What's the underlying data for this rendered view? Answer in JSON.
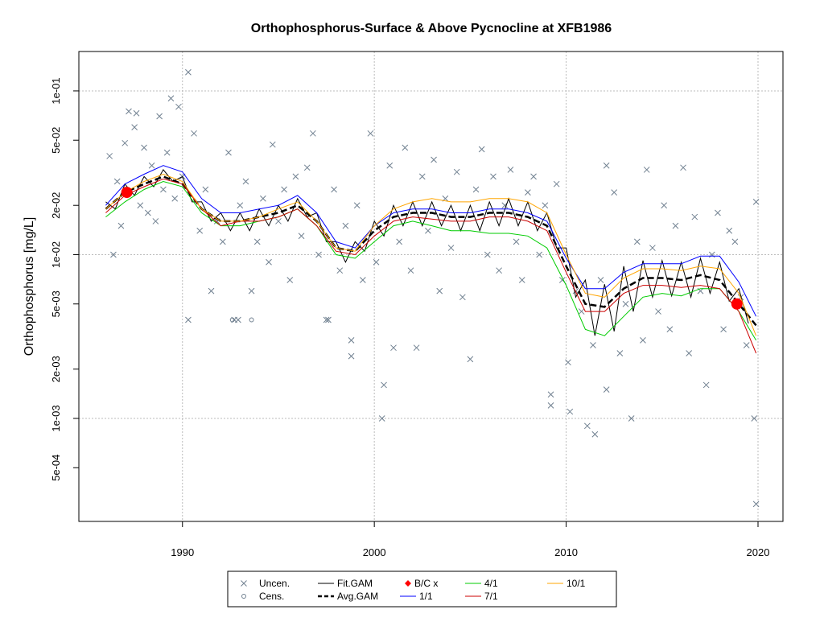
{
  "chart_data": {
    "type": "line",
    "title": "Orthophosphorus-Surface & Above Pycnocline at XFB1986",
    "y_label": "Orthophosphorus [mg/L]",
    "log_y": true,
    "grid": true,
    "xlim": [
      1984.6,
      2021.3
    ],
    "ylim": [
      0.000235,
      0.174
    ],
    "xticks": [
      1990,
      2000,
      2010,
      2020
    ],
    "yticks": [
      {
        "value": 0.1,
        "label": "1e-01"
      },
      {
        "value": 0.05,
        "label": "5e-02"
      },
      {
        "value": 0.02,
        "label": "2e-02"
      },
      {
        "value": 0.01,
        "label": "1e-02"
      },
      {
        "value": 0.005,
        "label": "5e-03"
      },
      {
        "value": 0.002,
        "label": "2e-03"
      },
      {
        "value": 0.001,
        "label": "1e-03"
      },
      {
        "value": 0.0005,
        "label": "5e-04"
      }
    ],
    "ygrid": [
      0.1,
      0.01,
      0.001
    ],
    "x": [
      1986,
      1987,
      1988,
      1989,
      1990,
      1991,
      1992,
      1993,
      1994,
      1995,
      1996,
      1997,
      1998,
      1999,
      2000,
      2001,
      2002,
      2003,
      2004,
      2005,
      2006,
      2007,
      2008,
      2009,
      2010,
      2011,
      2012,
      2013,
      2014,
      2015,
      2016,
      2017,
      2018,
      2019,
      2019.9
    ],
    "series": [
      {
        "name": "Uncen.",
        "color": "#708090",
        "style": "cross",
        "x": [
          1986.2,
          1986.4,
          1986.6,
          1986.8,
          1987.0,
          1987.2,
          1987.5,
          1987.6,
          1987.8,
          1988.0,
          1988.2,
          1988.4,
          1988.6,
          1988.8,
          1989.0,
          1989.2,
          1989.4,
          1989.6,
          1989.8,
          1990.0,
          1990.3,
          1990.3,
          1990.6,
          1990.9,
          1991.2,
          1991.5,
          1991.8,
          1992.1,
          1992.4,
          1992.7,
          1992.9,
          1993.0,
          1993.3,
          1993.6,
          1993.9,
          1994.2,
          1994.5,
          1994.7,
          1995.0,
          1995.3,
          1995.6,
          1995.9,
          1996.2,
          1996.5,
          1996.8,
          1997.1,
          1997.5,
          1997.6,
          1997.9,
          1998.2,
          1998.5,
          1998.8,
          1998.8,
          1999.1,
          1999.4,
          1999.8,
          2000.1,
          2000.4,
          2000.5,
          2000.8,
          2001.0,
          2001.3,
          2001.6,
          2001.9,
          2002.2,
          2002.5,
          2002.8,
          2003.1,
          2003.4,
          2003.7,
          2004.0,
          2004.3,
          2004.6,
          2005.0,
          2005.3,
          2005.6,
          2005.9,
          2006.2,
          2006.5,
          2006.8,
          2007.1,
          2007.4,
          2007.7,
          2008.0,
          2008.3,
          2008.6,
          2008.9,
          2009.2,
          2009.2,
          2009.5,
          2009.8,
          2010.1,
          2010.2,
          2010.5,
          2010.8,
          2011.1,
          2011.4,
          2011.5,
          2011.8,
          2012.1,
          2012.1,
          2012.5,
          2012.8,
          2013.1,
          2013.4,
          2013.7,
          2014.0,
          2014.2,
          2014.5,
          2014.8,
          2015.1,
          2015.4,
          2015.7,
          2016.1,
          2016.4,
          2016.7,
          2017.0,
          2017.3,
          2017.6,
          2017.9,
          2018.2,
          2018.5,
          2018.8,
          2019.1,
          2019.4,
          2019.8,
          2019.9,
          2019.9
        ],
        "values": [
          0.04,
          0.01,
          0.028,
          0.015,
          0.048,
          0.075,
          0.06,
          0.073,
          0.02,
          0.045,
          0.018,
          0.035,
          0.016,
          0.07,
          0.025,
          0.042,
          0.09,
          0.022,
          0.08,
          0.03,
          0.13,
          0.004,
          0.055,
          0.014,
          0.025,
          0.006,
          0.016,
          0.012,
          0.042,
          0.004,
          0.004,
          0.02,
          0.028,
          0.006,
          0.012,
          0.022,
          0.009,
          0.047,
          0.016,
          0.025,
          0.007,
          0.03,
          0.013,
          0.034,
          0.055,
          0.01,
          0.004,
          0.004,
          0.025,
          0.008,
          0.015,
          0.0024,
          0.003,
          0.02,
          0.007,
          0.055,
          0.009,
          0.001,
          0.0016,
          0.035,
          0.0027,
          0.012,
          0.045,
          0.008,
          0.0027,
          0.03,
          0.014,
          0.038,
          0.006,
          0.022,
          0.011,
          0.032,
          0.0055,
          0.0023,
          0.025,
          0.044,
          0.01,
          0.03,
          0.008,
          0.02,
          0.033,
          0.012,
          0.007,
          0.024,
          0.03,
          0.01,
          0.02,
          0.0014,
          0.0012,
          0.027,
          0.007,
          0.0022,
          0.0011,
          0.006,
          0.0045,
          0.0009,
          0.0028,
          0.0008,
          0.007,
          0.035,
          0.0015,
          0.024,
          0.0025,
          0.005,
          0.001,
          0.012,
          0.003,
          0.033,
          0.011,
          0.0045,
          0.02,
          0.0035,
          0.015,
          0.034,
          0.0025,
          0.017,
          0.006,
          0.0016,
          0.01,
          0.018,
          0.0035,
          0.014,
          0.012,
          0.0055,
          0.0028,
          0.001,
          0.0003,
          0.021
        ]
      },
      {
        "name": "Cens.",
        "color": "#708090",
        "style": "circle",
        "x": [
          1992.6,
          1993.6
        ],
        "values": [
          0.004,
          0.004
        ]
      },
      {
        "name": "Fit.GAM",
        "color": "#000000",
        "style": "line",
        "x": [
          1986,
          1986.5,
          1987,
          1987.5,
          1988,
          1988.5,
          1989,
          1989.5,
          1990,
          1990.5,
          1991,
          1991.5,
          1992,
          1992.5,
          1993,
          1993.5,
          1994,
          1994.5,
          1995,
          1995.5,
          1996,
          1996.5,
          1997,
          1997.5,
          1998,
          1998.5,
          1999,
          1999.5,
          2000,
          2000.5,
          2001,
          2001.5,
          2002,
          2002.5,
          2003,
          2003.5,
          2004,
          2004.5,
          2005,
          2005.5,
          2006,
          2006.5,
          2007,
          2007.5,
          2008,
          2008.5,
          2009,
          2009.5,
          2010,
          2010.5,
          2011,
          2011.5,
          2012,
          2012.5,
          2013,
          2013.5,
          2014,
          2014.5,
          2015,
          2015.5,
          2016,
          2016.5,
          2017,
          2017.5,
          2018,
          2018.5,
          2019,
          2019.5
        ],
        "values": [
          0.021,
          0.019,
          0.027,
          0.023,
          0.03,
          0.026,
          0.033,
          0.028,
          0.03,
          0.021,
          0.021,
          0.016,
          0.018,
          0.014,
          0.018,
          0.014,
          0.019,
          0.015,
          0.02,
          0.016,
          0.022,
          0.017,
          0.018,
          0.012,
          0.012,
          0.009,
          0.012,
          0.0105,
          0.016,
          0.013,
          0.02,
          0.015,
          0.021,
          0.015,
          0.021,
          0.015,
          0.02,
          0.014,
          0.02,
          0.014,
          0.021,
          0.015,
          0.022,
          0.015,
          0.021,
          0.014,
          0.018,
          0.011,
          0.011,
          0.0055,
          0.007,
          0.0032,
          0.0066,
          0.0034,
          0.0085,
          0.0045,
          0.0092,
          0.0055,
          0.0092,
          0.0056,
          0.009,
          0.0055,
          0.0095,
          0.0058,
          0.009,
          0.0052,
          0.0062,
          0.0038
        ]
      },
      {
        "name": "Avg.GAM",
        "color": "#000000",
        "style": "dashed",
        "values": [
          0.019,
          0.024,
          0.027,
          0.03,
          0.027,
          0.019,
          0.016,
          0.016,
          0.017,
          0.018,
          0.02,
          0.016,
          0.011,
          0.0105,
          0.014,
          0.017,
          0.018,
          0.018,
          0.017,
          0.017,
          0.018,
          0.018,
          0.017,
          0.015,
          0.0085,
          0.005,
          0.0048,
          0.0062,
          0.0072,
          0.0072,
          0.007,
          0.0075,
          0.007,
          0.005,
          0.0037
        ]
      },
      {
        "name": "B/C x",
        "color": "#ff0000",
        "style": "dot",
        "x": [
          1987.1,
          2018.9
        ],
        "values": [
          0.024,
          0.005
        ]
      },
      {
        "name": "1/1",
        "color": "#0000ff",
        "style": "thin",
        "values": [
          0.02,
          0.027,
          0.031,
          0.035,
          0.032,
          0.022,
          0.018,
          0.018,
          0.019,
          0.02,
          0.023,
          0.018,
          0.012,
          0.011,
          0.015,
          0.018,
          0.019,
          0.019,
          0.018,
          0.018,
          0.019,
          0.019,
          0.018,
          0.016,
          0.0095,
          0.0062,
          0.0062,
          0.0078,
          0.0088,
          0.0088,
          0.0088,
          0.0098,
          0.0098,
          0.0068,
          0.0042
        ]
      },
      {
        "name": "4/1",
        "color": "#00cc00",
        "style": "thin",
        "values": [
          0.017,
          0.021,
          0.025,
          0.028,
          0.026,
          0.018,
          0.015,
          0.015,
          0.016,
          0.017,
          0.019,
          0.015,
          0.01,
          0.0095,
          0.012,
          0.015,
          0.016,
          0.015,
          0.014,
          0.014,
          0.0135,
          0.0135,
          0.013,
          0.011,
          0.0065,
          0.0035,
          0.0032,
          0.0042,
          0.0055,
          0.0058,
          0.0056,
          0.0062,
          0.0062,
          0.0045,
          0.003
        ]
      },
      {
        "name": "7/1",
        "color": "#cc0000",
        "style": "thin",
        "values": [
          0.018,
          0.023,
          0.026,
          0.029,
          0.027,
          0.019,
          0.015,
          0.016,
          0.016,
          0.017,
          0.019,
          0.015,
          0.0105,
          0.01,
          0.013,
          0.016,
          0.017,
          0.0165,
          0.016,
          0.016,
          0.017,
          0.017,
          0.016,
          0.014,
          0.0078,
          0.0045,
          0.0045,
          0.0058,
          0.0065,
          0.0065,
          0.0063,
          0.0065,
          0.0062,
          0.0045,
          0.0025
        ]
      },
      {
        "name": "10/1",
        "color": "#ffa500",
        "style": "thin",
        "values": [
          0.019,
          0.024,
          0.028,
          0.031,
          0.028,
          0.019,
          0.016,
          0.016,
          0.017,
          0.019,
          0.021,
          0.016,
          0.011,
          0.0105,
          0.015,
          0.019,
          0.021,
          0.022,
          0.021,
          0.021,
          0.022,
          0.022,
          0.021,
          0.018,
          0.01,
          0.0058,
          0.0055,
          0.0072,
          0.0082,
          0.0082,
          0.008,
          0.0085,
          0.0082,
          0.0058,
          0.0032
        ]
      }
    ]
  }
}
